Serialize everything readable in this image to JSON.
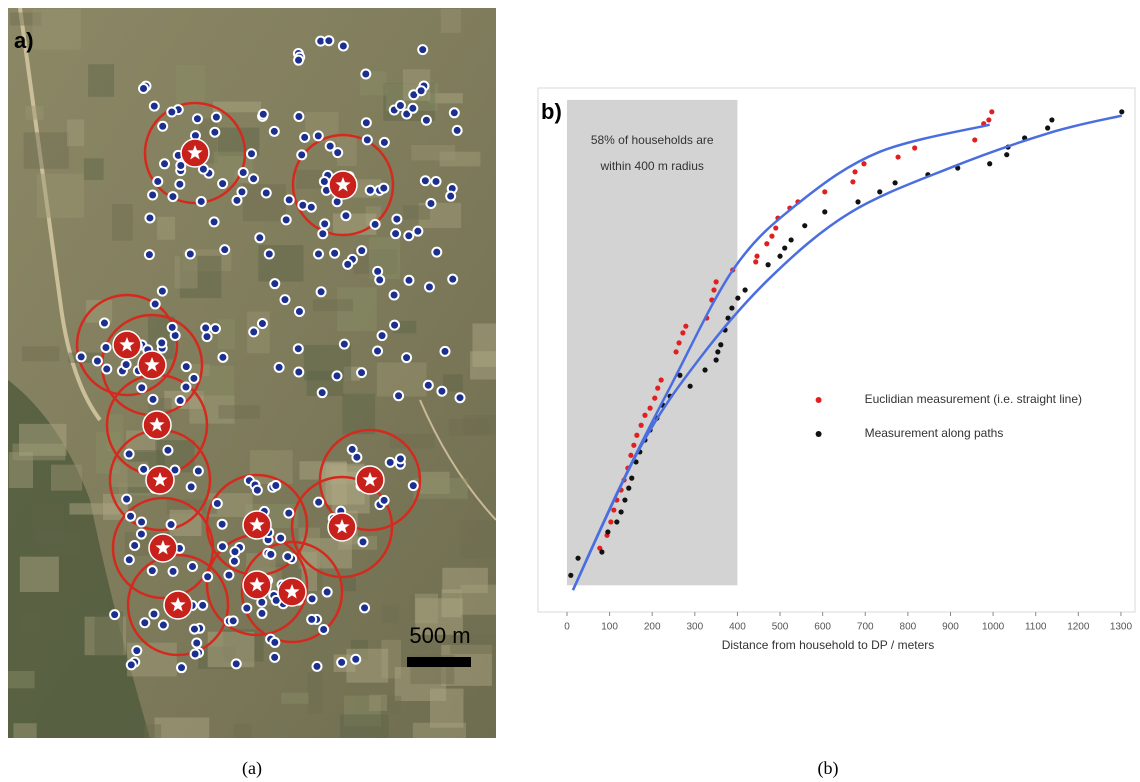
{
  "panel_a": {
    "label": "a)",
    "scale_label": "500 m",
    "caption": "(a)"
  },
  "chart_data": {
    "type": "scatter",
    "panel_label": "b)",
    "caption": "(b)",
    "x_label": "Distance from household to DP / meters",
    "xlim": [
      -68,
      1333
    ],
    "ylim": [
      -5,
      105
    ],
    "xticks": [
      0,
      100,
      200,
      300,
      400,
      500,
      600,
      700,
      800,
      900,
      1000,
      1100,
      1200,
      1300
    ],
    "grid": false,
    "legend": "center-right",
    "highlight": {
      "x": [
        0,
        400
      ],
      "y": [
        0.6,
        102.5
      ],
      "color": "#d3d3d3",
      "text": [
        "58% of households are",
        "within 400 m radius"
      ]
    },
    "series": [
      {
        "name": "Euclidian measurement (i.e. straight line)",
        "color": "#e02020",
        "x": [
          77,
          94,
          103,
          110,
          117,
          127,
          134,
          143,
          150,
          157,
          164,
          174,
          183,
          195,
          206,
          213,
          221,
          256,
          263,
          272,
          279,
          328,
          340,
          345,
          350,
          389,
          443,
          446,
          469,
          481,
          490,
          495,
          523,
          542,
          605,
          671,
          676,
          697,
          777,
          816,
          957,
          978,
          990,
          997
        ],
        "values": [
          8.4,
          11.1,
          13.9,
          16.4,
          18.5,
          20.6,
          22.7,
          25.2,
          27.9,
          30.0,
          32.1,
          34.2,
          36.3,
          37.8,
          39.9,
          42.0,
          43.7,
          49.6,
          51.5,
          53.6,
          55.0,
          56.7,
          60.5,
          62.6,
          64.3,
          66.8,
          68.5,
          69.7,
          72.3,
          73.9,
          75.6,
          77.7,
          79.8,
          81.1,
          83.2,
          85.3,
          87.4,
          89.1,
          90.5,
          92.4,
          94.1,
          97.5,
          98.3,
          100.0
        ]
      },
      {
        "name": "Measurement along paths",
        "color": "#111111",
        "x": [
          9,
          26,
          82,
          96,
          117,
          127,
          136,
          145,
          152,
          162,
          171,
          183,
          195,
          211,
          225,
          242,
          265,
          289,
          324,
          350,
          354,
          361,
          371,
          378,
          387,
          401,
          418,
          472,
          500,
          511,
          526,
          558,
          605,
          683,
          734,
          770,
          847,
          917,
          992,
          1032,
          1035,
          1074,
          1128,
          1138,
          1302
        ],
        "values": [
          2.7,
          6.3,
          7.6,
          11.8,
          13.9,
          16.0,
          18.5,
          21.0,
          23.1,
          26.5,
          28.6,
          31.1,
          33.2,
          35.7,
          38.4,
          40.3,
          44.7,
          42.4,
          45.8,
          47.9,
          49.6,
          51.1,
          54.2,
          56.7,
          58.8,
          60.9,
          62.6,
          67.9,
          69.7,
          71.4,
          73.1,
          76.1,
          79.0,
          81.1,
          83.2,
          85.1,
          86.8,
          88.2,
          89.1,
          91.0,
          92.6,
          94.5,
          96.6,
          98.3,
          100.0
        ]
      }
    ],
    "fits": [
      {
        "color": "#4a6ee0",
        "x": [
          14,
          124,
          242,
          394,
          547,
          734,
          992
        ],
        "values": [
          -0.4,
          21.2,
          42.2,
          67.4,
          81.1,
          91.6,
          97.3
        ]
      },
      {
        "color": "#4a6ee0",
        "x": [
          14,
          171,
          312,
          476,
          664,
          898,
          1133,
          1302
        ],
        "values": [
          -0.4,
          29.4,
          48.3,
          65.1,
          78.8,
          88.2,
          95.6,
          99.2
        ]
      }
    ]
  }
}
